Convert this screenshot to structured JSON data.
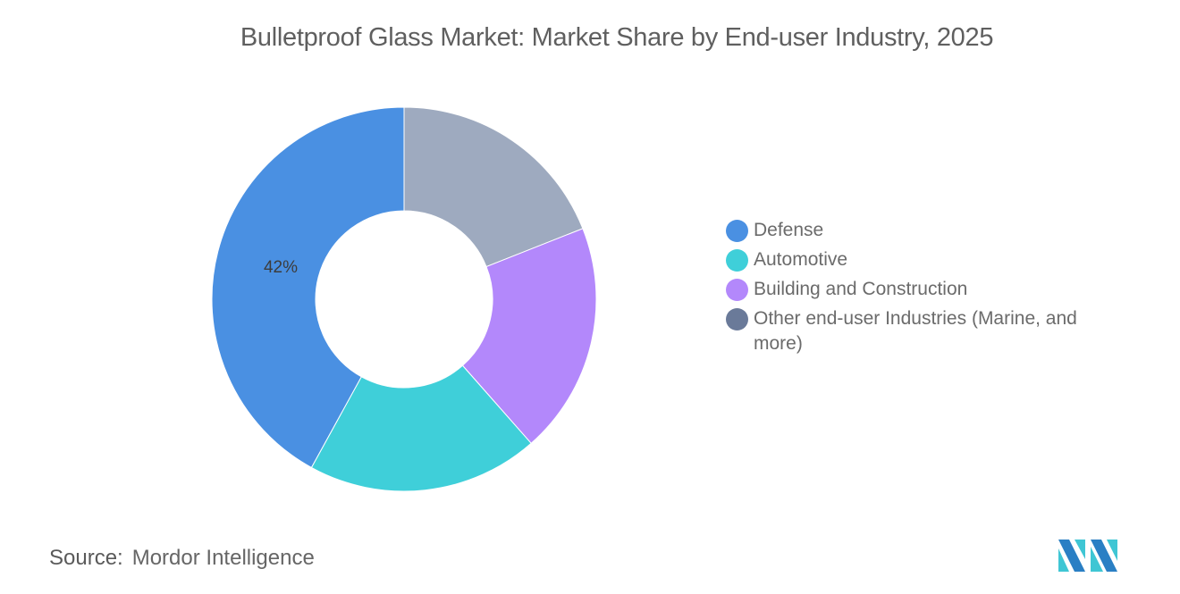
{
  "title": "Bulletproof Glass Market: Market Share by End-user Industry, 2025",
  "source": {
    "label": "Source:",
    "value": "Mordor Intelligence"
  },
  "logo": {
    "name": "mordor-intelligence-logo"
  },
  "chart_data": {
    "type": "pie",
    "variant": "donut",
    "title": "Bulletproof Glass Market: Market Share by End-user Industry, 2025",
    "categories": [
      "Defense",
      "Automotive",
      "Building and Construction",
      "Other end-user Industries (Marine, and more)"
    ],
    "values": [
      42,
      19.5,
      19.5,
      19
    ],
    "colors": [
      "#4a90e2",
      "#3fcfd9",
      "#b388fb",
      "#9eaabf"
    ],
    "legend_colors": [
      "#4a90e2",
      "#3fcfd9",
      "#b388fb",
      "#6a7a99"
    ],
    "data_labels": [
      {
        "category": "Defense",
        "text": "42%"
      }
    ],
    "legend_position": "right",
    "start_angle": "top, clockwise order: Other, Building and Construction, Automotive, Defense"
  },
  "legend": [
    {
      "label": "Defense",
      "color": "#4a90e2"
    },
    {
      "label": "Automotive",
      "color": "#3fcfd9"
    },
    {
      "label": "Building and Construction",
      "color": "#b388fb"
    },
    {
      "label": "Other end-user Industries (Marine, and more)",
      "color": "#6a7a99"
    }
  ]
}
